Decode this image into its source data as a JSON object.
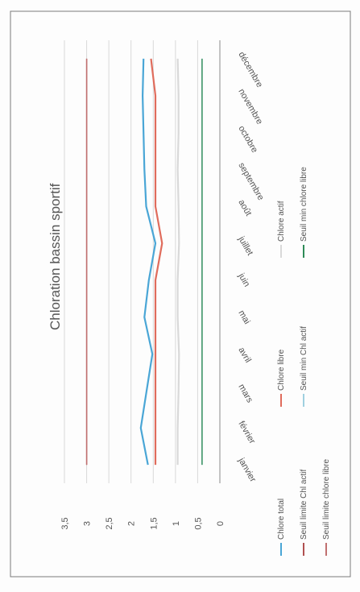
{
  "chart_data": {
    "type": "line",
    "title": "Chloration bassin sportif",
    "categories": [
      "janvier",
      "février",
      "mars",
      "avril",
      "mai",
      "juin",
      "juillet",
      "août",
      "septembre",
      "octobre",
      "novembre",
      "décembre"
    ],
    "y_ticks": [
      "0",
      "0,5",
      "1",
      "1,5",
      "2",
      "2,5",
      "3",
      "3,5"
    ],
    "ylim": [
      0,
      3.5
    ],
    "grid": true,
    "legend_position": "bottom",
    "series": [
      {
        "name": "Chlore total",
        "color": "#4aa6d6",
        "values": [
          1.62,
          1.78,
          1.65,
          1.52,
          1.7,
          1.6,
          1.45,
          1.66,
          1.7,
          1.72,
          1.74,
          1.72
        ]
      },
      {
        "name": "Chlore libre",
        "color": "#e06c5c",
        "values": [
          1.45,
          1.45,
          1.45,
          1.45,
          1.45,
          1.45,
          1.3,
          1.45,
          1.45,
          1.45,
          1.45,
          1.55
        ]
      },
      {
        "name": "Chlore actif",
        "color": "#d9d9d9",
        "values": [
          0.95,
          0.95,
          0.93,
          0.92,
          0.95,
          0.95,
          0.92,
          0.93,
          0.95,
          0.93,
          0.93,
          0.95
        ]
      },
      {
        "name": "Seuil limite Chl actif",
        "color": "#b05050",
        "values": [
          3,
          3,
          3,
          3,
          3,
          3,
          3,
          3,
          3,
          3,
          3,
          3
        ]
      },
      {
        "name": "Seuil min Chl actif",
        "color": "#a0d0e0",
        "values": [
          0.4,
          0.4,
          0.4,
          0.4,
          0.4,
          0.4,
          0.4,
          0.4,
          0.4,
          0.4,
          0.4,
          0.4
        ]
      },
      {
        "name": "Seuil min chlore libre",
        "color": "#2e8b57",
        "values": [
          0.4,
          0.4,
          0.4,
          0.4,
          0.4,
          0.4,
          0.4,
          0.4,
          0.4,
          0.4,
          0.4,
          0.4
        ]
      },
      {
        "name": "Seuil limite chlore libre",
        "color": "#c07070",
        "values": [
          3,
          3,
          3,
          3,
          3,
          3,
          3,
          3,
          3,
          3,
          3,
          3
        ]
      }
    ]
  }
}
